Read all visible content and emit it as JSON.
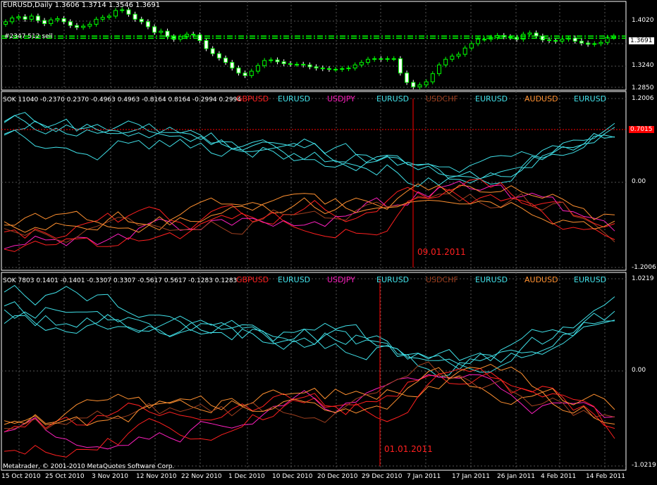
{
  "colors": {
    "background": "#000000",
    "grid": "#555555",
    "bull_candle": "#00ff00",
    "bear_candle": "#ffffff",
    "price_line": "#00ff00",
    "level_line": "#ff0000",
    "price_label_bg": "#ffffff",
    "level_label_bg": "#ff0000",
    "cyan": "#40e0e8",
    "red": "#ff2020",
    "magenta": "#ff20c0",
    "orange": "#ff9030",
    "brown": "#a04020"
  },
  "main_panel": {
    "title": "EURUSD,Daily  1.3606 1.3714 1.3546 1.3691",
    "order_label": "#2347 512 sell",
    "current_price": "1.3691",
    "y_labels": [
      "1.4020",
      "1.3240",
      "1.2850"
    ]
  },
  "indicator1": {
    "header": "SOK 11040 -0.2370 0.2370 -0.4963 0.4963 -0.8164 0.8164 -0.2994 0.2994",
    "symbols": [
      "GBPUSD",
      "EURUSD",
      "USDJPY",
      "EURUSD",
      "USDCHF",
      "EURUSD",
      "AUDUSD",
      "EURUSD"
    ],
    "level_value": "0.7015",
    "y_labels": [
      "1.2006",
      "0.00",
      "-1.2006"
    ],
    "vline_date": "09.01.2011"
  },
  "indicator2": {
    "header": "SOK 7803 0.1401 -0.1401 -0.3307 0.3307 -0.5617 0.5617 -0.1283 0.1283",
    "symbols": [
      "GBPUSD",
      "EURUSD",
      "USDJPY",
      "EURUSD",
      "USDCHF",
      "EURUSD",
      "AUDUSD",
      "EURUSD"
    ],
    "y_labels": [
      "1.0219",
      "0.00",
      "-1.0219"
    ],
    "vline_date": "01.01.2011"
  },
  "copyright": "Metatrader, © 2001-2010 MetaQuotes Software Corp.",
  "x_labels": [
    "15 Oct 2010",
    "25 Oct 2010",
    "3 Nov 2010",
    "12 Nov 2010",
    "22 Nov 2010",
    "1 Dec 2010",
    "10 Dec 2010",
    "20 Dec 2010",
    "29 Dec 2010",
    "7 Jan 2011",
    "17 Jan 2011",
    "26 Jan 2011",
    "4 Feb 2011",
    "14 Feb 2011"
  ],
  "chart_data": [
    {
      "type": "candlestick",
      "title": "EURUSD,Daily",
      "ylim": [
        1.285,
        1.42
      ],
      "close": [
        1.392,
        1.398,
        1.4,
        1.396,
        1.401,
        1.394,
        1.389,
        1.395,
        1.397,
        1.392,
        1.386,
        1.383,
        1.385,
        1.388,
        1.396,
        1.399,
        1.401,
        1.41,
        1.411,
        1.404,
        1.396,
        1.392,
        1.384,
        1.375,
        1.377,
        1.368,
        1.364,
        1.368,
        1.372,
        1.371,
        1.362,
        1.349,
        1.341,
        1.334,
        1.327,
        1.318,
        1.31,
        1.306,
        1.313,
        1.322,
        1.33,
        1.331,
        1.328,
        1.325,
        1.324,
        1.324,
        1.323,
        1.32,
        1.318,
        1.317,
        1.316,
        1.316,
        1.317,
        1.318,
        1.323,
        1.327,
        1.332,
        1.333,
        1.332,
        1.333,
        1.333,
        1.31,
        1.295,
        1.288,
        1.291,
        1.296,
        1.309,
        1.323,
        1.332,
        1.337,
        1.34,
        1.35,
        1.357,
        1.364,
        1.364,
        1.367,
        1.37,
        1.368,
        1.367,
        1.364,
        1.372,
        1.374,
        1.369,
        1.363,
        1.362,
        1.361,
        1.364,
        1.366,
        1.361,
        1.358,
        1.356,
        1.357,
        1.359,
        1.367,
        1.369
      ]
    },
    {
      "type": "line",
      "title": "SOK 11040",
      "ylim": [
        -1.2006,
        1.2006
      ],
      "series": [
        {
          "name": "GBPUSD",
          "color": "red"
        },
        {
          "name": "EURUSD",
          "color": "cyan"
        },
        {
          "name": "USDJPY",
          "color": "magenta"
        },
        {
          "name": "USDCHF",
          "color": "brown"
        },
        {
          "name": "AUDUSD",
          "color": "orange"
        }
      ]
    },
    {
      "type": "line",
      "title": "SOK 7803",
      "ylim": [
        -1.0219,
        1.0219
      ],
      "series": [
        {
          "name": "GBPUSD",
          "color": "red"
        },
        {
          "name": "EURUSD",
          "color": "cyan"
        },
        {
          "name": "USDJPY",
          "color": "magenta"
        },
        {
          "name": "USDCHF",
          "color": "brown"
        },
        {
          "name": "AUDUSD",
          "color": "orange"
        }
      ]
    }
  ]
}
